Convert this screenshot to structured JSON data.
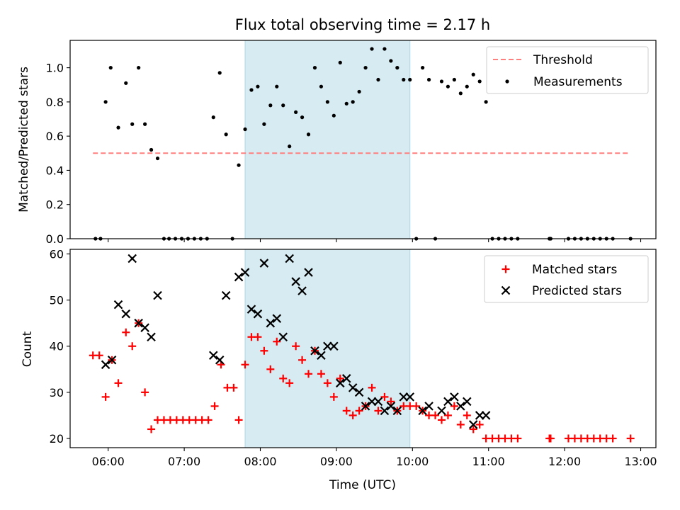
{
  "figure": {
    "title": "Flux total observing time = 2.17 h"
  },
  "colors": {
    "threshold": "#ff7f7f",
    "measurements": "#000000",
    "matched": "#ff0000",
    "predicted": "#000000",
    "observing_span": "#add8e6"
  },
  "chart_data": [
    {
      "type": "scatter",
      "title": "Flux total observing time = 2.17 h",
      "xlabel": "",
      "ylabel": "Matched/Predicted stars",
      "ylim": [
        0,
        1.16
      ],
      "xlim": [
        "05:30",
        "13:12"
      ],
      "yticks": [
        "0.0",
        "0.2",
        "0.4",
        "0.6",
        "0.8",
        "1.0"
      ],
      "x_tick_labels_shown": false,
      "grid": false,
      "legend": "top-right",
      "shaded_span": [
        "07:48",
        "09:58"
      ],
      "series": [
        {
          "name": "Threshold",
          "style": "dashed-line",
          "points": [
            [
              "05:48",
              0.5
            ],
            [
              "12:52",
              0.5
            ]
          ]
        },
        {
          "name": "Measurements",
          "style": "dots",
          "points": [
            [
              "05:50",
              0
            ],
            [
              "05:54",
              0
            ],
            [
              "05:58",
              0.8
            ],
            [
              "06:02",
              1.0
            ],
            [
              "06:08",
              0.65
            ],
            [
              "06:14",
              0.91
            ],
            [
              "06:19",
              0.67
            ],
            [
              "06:24",
              1.0
            ],
            [
              "06:29",
              0.67
            ],
            [
              "06:34",
              0.52
            ],
            [
              "06:39",
              0.47
            ],
            [
              "06:44",
              0
            ],
            [
              "06:48",
              0
            ],
            [
              "06:53",
              0
            ],
            [
              "06:58",
              0
            ],
            [
              "07:03",
              0
            ],
            [
              "07:08",
              0
            ],
            [
              "07:13",
              0
            ],
            [
              "07:18",
              0
            ],
            [
              "07:23",
              0.71
            ],
            [
              "07:28",
              0.97
            ],
            [
              "07:33",
              0.61
            ],
            [
              "07:38",
              0
            ],
            [
              "07:43",
              0.43
            ],
            [
              "07:48",
              0.64
            ],
            [
              "07:53",
              0.87
            ],
            [
              "07:58",
              0.89
            ],
            [
              "08:03",
              0.67
            ],
            [
              "08:08",
              0.78
            ],
            [
              "08:13",
              0.89
            ],
            [
              "08:18",
              0.78
            ],
            [
              "08:23",
              0.54
            ],
            [
              "08:28",
              0.74
            ],
            [
              "08:33",
              0.71
            ],
            [
              "08:38",
              0.61
            ],
            [
              "08:43",
              1.0
            ],
            [
              "08:48",
              0.89
            ],
            [
              "08:53",
              0.8
            ],
            [
              "08:58",
              0.72
            ],
            [
              "09:03",
              1.03
            ],
            [
              "09:08",
              0.79
            ],
            [
              "09:13",
              0.8
            ],
            [
              "09:18",
              0.86
            ],
            [
              "09:23",
              1.0
            ],
            [
              "09:28",
              1.11
            ],
            [
              "09:33",
              0.93
            ],
            [
              "09:38",
              1.11
            ],
            [
              "09:43",
              1.04
            ],
            [
              "09:48",
              1.0
            ],
            [
              "09:53",
              0.93
            ],
            [
              "09:58",
              0.93
            ],
            [
              "10:03",
              0
            ],
            [
              "10:08",
              1.0
            ],
            [
              "10:13",
              0.93
            ],
            [
              "10:18",
              0
            ],
            [
              "10:23",
              0.92
            ],
            [
              "10:28",
              0.89
            ],
            [
              "10:33",
              0.93
            ],
            [
              "10:38",
              0.85
            ],
            [
              "10:43",
              0.89
            ],
            [
              "10:48",
              0.96
            ],
            [
              "10:53",
              0.92
            ],
            [
              "10:58",
              0.8
            ],
            [
              "11:03",
              0
            ],
            [
              "11:08",
              0
            ],
            [
              "11:13",
              0
            ],
            [
              "11:18",
              0
            ],
            [
              "11:23",
              0
            ],
            [
              "11:48",
              0
            ],
            [
              "11:49",
              0
            ],
            [
              "12:03",
              0
            ],
            [
              "12:08",
              0
            ],
            [
              "12:13",
              0
            ],
            [
              "12:18",
              0
            ],
            [
              "12:23",
              0
            ],
            [
              "12:28",
              0
            ],
            [
              "12:33",
              0
            ],
            [
              "12:38",
              0
            ],
            [
              "12:52",
              0
            ]
          ]
        }
      ]
    },
    {
      "type": "scatter",
      "xlabel": "Time (UTC)",
      "ylabel": "Count",
      "ylim": [
        18,
        61
      ],
      "xlim": [
        "05:30",
        "13:12"
      ],
      "xticks": [
        "06:00",
        "07:00",
        "08:00",
        "09:00",
        "10:00",
        "11:00",
        "12:00",
        "13:00"
      ],
      "yticks": [
        "20",
        "30",
        "40",
        "50",
        "60"
      ],
      "grid": false,
      "legend": "top-right",
      "shaded_span": [
        "07:48",
        "09:58"
      ],
      "series": [
        {
          "name": "Matched stars",
          "marker": "plus",
          "points": [
            [
              "05:48",
              38
            ],
            [
              "05:53",
              38
            ],
            [
              "05:58",
              29
            ],
            [
              "06:03",
              37
            ],
            [
              "06:08",
              32
            ],
            [
              "06:14",
              43
            ],
            [
              "06:19",
              40
            ],
            [
              "06:24",
              45
            ],
            [
              "06:29",
              30
            ],
            [
              "06:34",
              22
            ],
            [
              "06:39",
              24
            ],
            [
              "06:44",
              24
            ],
            [
              "06:49",
              24
            ],
            [
              "06:54",
              24
            ],
            [
              "06:59",
              24
            ],
            [
              "07:04",
              24
            ],
            [
              "07:09",
              24
            ],
            [
              "07:14",
              24
            ],
            [
              "07:19",
              24
            ],
            [
              "07:24",
              27
            ],
            [
              "07:29",
              36
            ],
            [
              "07:34",
              31
            ],
            [
              "07:39",
              31
            ],
            [
              "07:43",
              24
            ],
            [
              "07:48",
              36
            ],
            [
              "07:53",
              42
            ],
            [
              "07:58",
              42
            ],
            [
              "08:03",
              39
            ],
            [
              "08:08",
              35
            ],
            [
              "08:13",
              41
            ],
            [
              "08:18",
              33
            ],
            [
              "08:23",
              32
            ],
            [
              "08:28",
              40
            ],
            [
              "08:33",
              37
            ],
            [
              "08:38",
              34
            ],
            [
              "08:43",
              39
            ],
            [
              "08:48",
              34
            ],
            [
              "08:53",
              32
            ],
            [
              "08:58",
              29
            ],
            [
              "09:03",
              33
            ],
            [
              "09:08",
              26
            ],
            [
              "09:13",
              25
            ],
            [
              "09:18",
              26
            ],
            [
              "09:23",
              27
            ],
            [
              "09:28",
              31
            ],
            [
              "09:33",
              26
            ],
            [
              "09:38",
              29
            ],
            [
              "09:43",
              28
            ],
            [
              "09:48",
              26
            ],
            [
              "09:53",
              27
            ],
            [
              "09:58",
              27
            ],
            [
              "10:03",
              27
            ],
            [
              "10:08",
              26
            ],
            [
              "10:13",
              25
            ],
            [
              "10:18",
              25
            ],
            [
              "10:23",
              24
            ],
            [
              "10:28",
              25
            ],
            [
              "10:33",
              27
            ],
            [
              "10:38",
              23
            ],
            [
              "10:43",
              25
            ],
            [
              "10:48",
              22
            ],
            [
              "10:53",
              23
            ],
            [
              "10:58",
              20
            ],
            [
              "11:03",
              20
            ],
            [
              "11:08",
              20
            ],
            [
              "11:13",
              20
            ],
            [
              "11:18",
              20
            ],
            [
              "11:23",
              20
            ],
            [
              "11:48",
              20
            ],
            [
              "11:49",
              20
            ],
            [
              "12:03",
              20
            ],
            [
              "12:08",
              20
            ],
            [
              "12:13",
              20
            ],
            [
              "12:18",
              20
            ],
            [
              "12:23",
              20
            ],
            [
              "12:28",
              20
            ],
            [
              "12:33",
              20
            ],
            [
              "12:38",
              20
            ],
            [
              "12:52",
              20
            ]
          ]
        },
        {
          "name": "Predicted stars",
          "marker": "x",
          "points": [
            [
              "05:58",
              36
            ],
            [
              "06:03",
              37
            ],
            [
              "06:08",
              49
            ],
            [
              "06:14",
              47
            ],
            [
              "06:19",
              59
            ],
            [
              "06:24",
              45
            ],
            [
              "06:29",
              44
            ],
            [
              "06:34",
              42
            ],
            [
              "06:39",
              51
            ],
            [
              "07:23",
              38
            ],
            [
              "07:28",
              37
            ],
            [
              "07:33",
              51
            ],
            [
              "07:43",
              55
            ],
            [
              "07:48",
              56
            ],
            [
              "07:53",
              48
            ],
            [
              "07:58",
              47
            ],
            [
              "08:03",
              58
            ],
            [
              "08:08",
              45
            ],
            [
              "08:13",
              46
            ],
            [
              "08:18",
              42
            ],
            [
              "08:23",
              59
            ],
            [
              "08:28",
              54
            ],
            [
              "08:33",
              52
            ],
            [
              "08:38",
              56
            ],
            [
              "08:43",
              39
            ],
            [
              "08:48",
              38
            ],
            [
              "08:53",
              40
            ],
            [
              "08:58",
              40
            ],
            [
              "09:03",
              32
            ],
            [
              "09:08",
              33
            ],
            [
              "09:13",
              31
            ],
            [
              "09:18",
              30
            ],
            [
              "09:23",
              27
            ],
            [
              "09:28",
              28
            ],
            [
              "09:33",
              28
            ],
            [
              "09:38",
              26
            ],
            [
              "09:43",
              27
            ],
            [
              "09:48",
              26
            ],
            [
              "09:53",
              29
            ],
            [
              "09:58",
              29
            ],
            [
              "10:08",
              26
            ],
            [
              "10:13",
              27
            ],
            [
              "10:23",
              26
            ],
            [
              "10:28",
              28
            ],
            [
              "10:33",
              29
            ],
            [
              "10:38",
              27
            ],
            [
              "10:43",
              28
            ],
            [
              "10:48",
              23
            ],
            [
              "10:53",
              25
            ],
            [
              "10:58",
              25
            ]
          ]
        }
      ]
    }
  ]
}
